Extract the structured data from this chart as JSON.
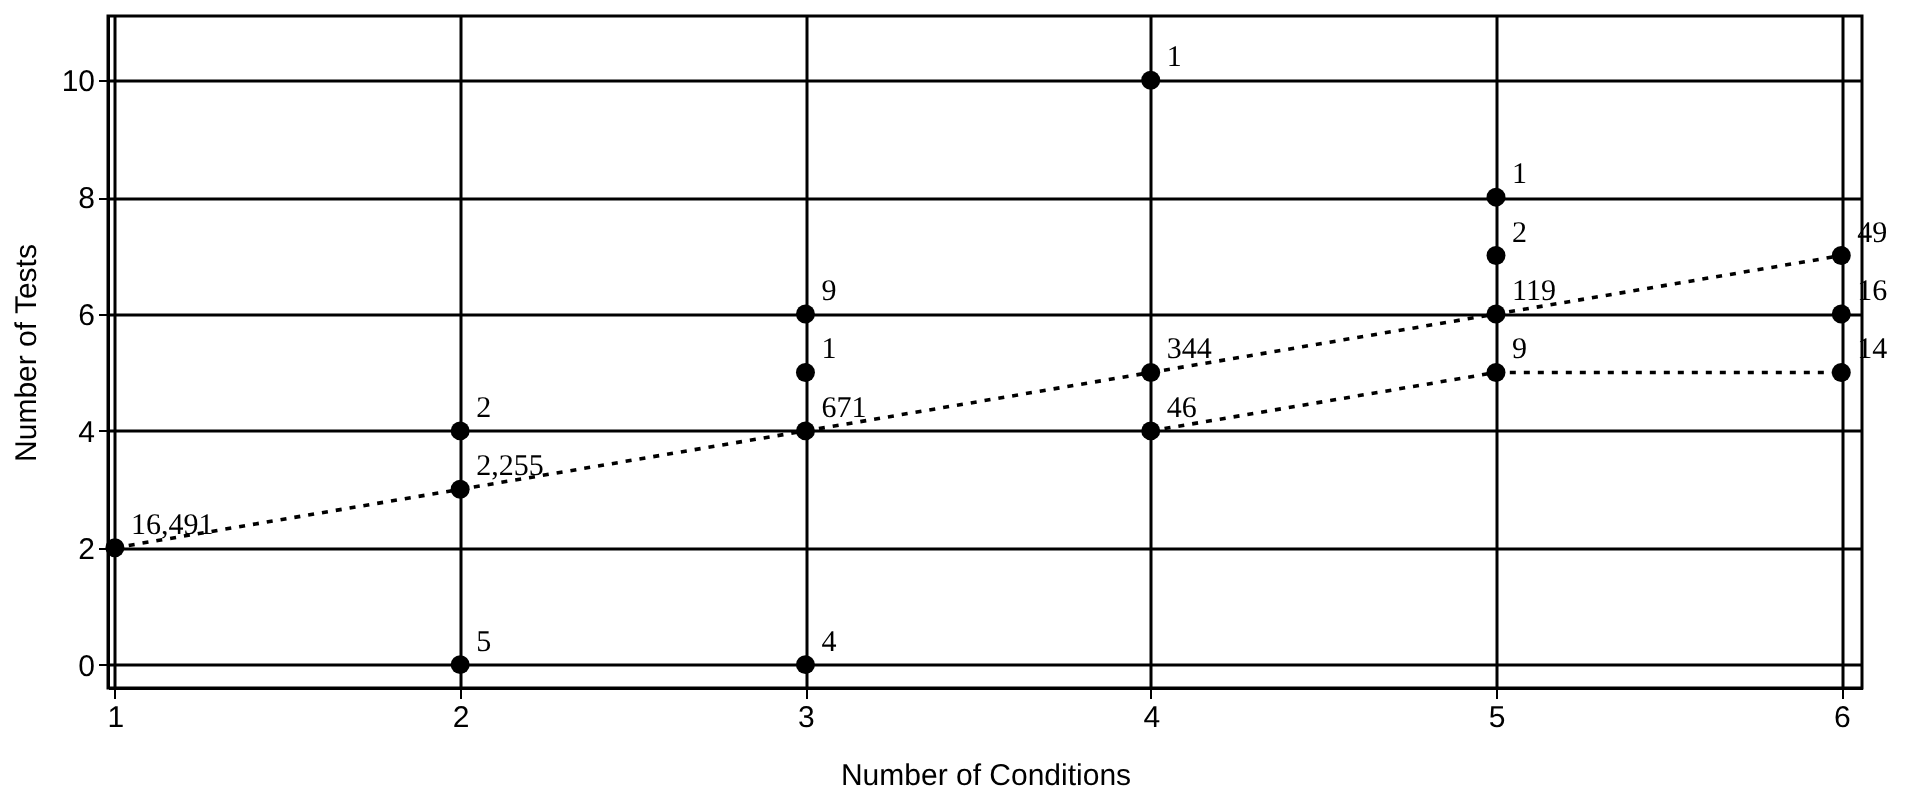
{
  "chart_data": {
    "type": "scatter",
    "xlabel": "Number of Conditions",
    "ylabel": "Number of Tests",
    "xlim": [
      0.98,
      6.06
    ],
    "xticks": [
      1,
      2,
      3,
      4,
      5,
      6
    ],
    "ylim": [
      -0.4,
      11.1
    ],
    "yticks": [
      0,
      2,
      4,
      6,
      8,
      10
    ],
    "grid": true,
    "series": [
      {
        "color": "#000000",
        "marker": "circle",
        "x": [
          1,
          2,
          2,
          2,
          3,
          3,
          3,
          3,
          4,
          4,
          4,
          5,
          5,
          5,
          5,
          6,
          6,
          6
        ],
        "values": [
          2,
          0,
          3,
          4,
          0,
          4,
          5,
          6,
          4,
          5,
          10,
          5,
          6,
          7,
          8,
          5,
          6,
          7
        ]
      },
      {
        "type": "line",
        "color": "#000000",
        "line_style": "dotted",
        "x": [
          1,
          2,
          3,
          4,
          5,
          6
        ],
        "values": [
          2,
          3,
          4,
          5,
          6,
          7
        ]
      },
      {
        "type": "line",
        "color": "#000000",
        "line_style": "dotted",
        "x": [
          4,
          5,
          6
        ],
        "values": [
          4,
          5,
          5
        ]
      }
    ],
    "annotations": [
      {
        "text": "16,491",
        "x": 1,
        "y": 2
      },
      {
        "text": "5",
        "x": 2,
        "y": 0
      },
      {
        "text": "2,255",
        "x": 2,
        "y": 3
      },
      {
        "text": "2",
        "x": 2,
        "y": 4
      },
      {
        "text": "4",
        "x": 3,
        "y": 0
      },
      {
        "text": "671",
        "x": 3,
        "y": 4
      },
      {
        "text": "1",
        "x": 3,
        "y": 5
      },
      {
        "text": "9",
        "x": 3,
        "y": 6
      },
      {
        "text": "46",
        "x": 4,
        "y": 4
      },
      {
        "text": "344",
        "x": 4,
        "y": 5
      },
      {
        "text": "1",
        "x": 4,
        "y": 10
      },
      {
        "text": "9",
        "x": 5,
        "y": 5
      },
      {
        "text": "119",
        "x": 5,
        "y": 6
      },
      {
        "text": "2",
        "x": 5,
        "y": 7
      },
      {
        "text": "1",
        "x": 5,
        "y": 8
      },
      {
        "text": "14",
        "x": 6,
        "y": 5
      },
      {
        "text": "16",
        "x": 6,
        "y": 6
      },
      {
        "text": "49",
        "x": 6,
        "y": 7
      }
    ]
  }
}
